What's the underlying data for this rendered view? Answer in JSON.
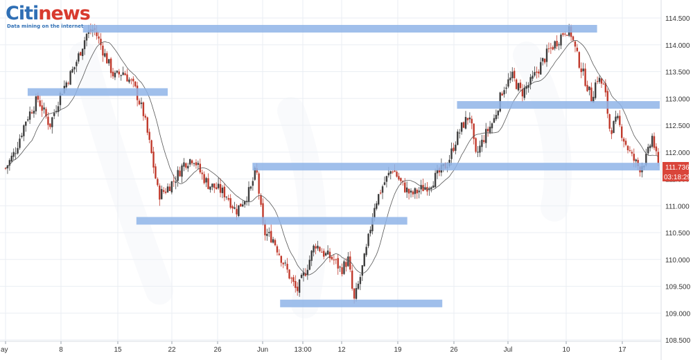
{
  "logo": {
    "brand_part1": "Citi",
    "brand_part2": "news",
    "tagline": "Data mining on the internet"
  },
  "colors": {
    "bull": "#3d3d3d",
    "bear": "#c0392b",
    "zone": "#8fb4e8",
    "ma": "#555555",
    "grid": "#eaeef3",
    "price_tag": "#d9453a"
  },
  "chart_data": {
    "type": "candlestick",
    "title": "",
    "ylim": [
      108.5,
      114.5
    ],
    "ytick_labels": [
      "114.500",
      "114.000",
      "113.500",
      "113.000",
      "112.500",
      "112.000",
      "111.500",
      "111.000",
      "110.500",
      "110.000",
      "109.500",
      "109.000",
      "108.500"
    ],
    "xtick_labels": [
      "ay",
      "8",
      "15",
      "22",
      "26",
      "Jun",
      "13:00",
      "12",
      "19",
      "26",
      "Jul",
      "10",
      "17"
    ],
    "last_price": "111.736",
    "countdown": "03:18:29",
    "close_path": [
      [
        0,
        111.7
      ],
      [
        10,
        112.0
      ],
      [
        22,
        112.6
      ],
      [
        35,
        113.0
      ],
      [
        48,
        112.5
      ],
      [
        60,
        113.1
      ],
      [
        75,
        113.6
      ],
      [
        88,
        114.2
      ],
      [
        96,
        114.3
      ],
      [
        108,
        113.8
      ],
      [
        118,
        113.4
      ],
      [
        128,
        113.5
      ],
      [
        140,
        113.2
      ],
      [
        150,
        112.7
      ],
      [
        158,
        112.0
      ],
      [
        166,
        111.2
      ],
      [
        174,
        111.3
      ],
      [
        184,
        111.5
      ],
      [
        194,
        111.8
      ],
      [
        204,
        111.9
      ],
      [
        212,
        111.6
      ],
      [
        220,
        111.4
      ],
      [
        232,
        111.3
      ],
      [
        240,
        111.2
      ],
      [
        250,
        110.9
      ],
      [
        258,
        111.1
      ],
      [
        266,
        111.3
      ],
      [
        272,
        111.7
      ],
      [
        280,
        110.5
      ],
      [
        290,
        110.4
      ],
      [
        300,
        110.0
      ],
      [
        308,
        109.7
      ],
      [
        316,
        109.4
      ],
      [
        326,
        109.8
      ],
      [
        336,
        110.3
      ],
      [
        346,
        110.1
      ],
      [
        356,
        110.0
      ],
      [
        364,
        109.8
      ],
      [
        372,
        110.0
      ],
      [
        378,
        109.2
      ],
      [
        384,
        109.6
      ],
      [
        392,
        110.2
      ],
      [
        400,
        111.0
      ],
      [
        410,
        111.4
      ],
      [
        420,
        111.7
      ],
      [
        430,
        111.4
      ],
      [
        440,
        111.2
      ],
      [
        450,
        111.3
      ],
      [
        460,
        111.4
      ],
      [
        470,
        111.6
      ],
      [
        480,
        111.8
      ],
      [
        488,
        112.2
      ],
      [
        496,
        112.5
      ],
      [
        504,
        112.7
      ],
      [
        510,
        111.9
      ],
      [
        520,
        112.3
      ],
      [
        530,
        112.6
      ],
      [
        540,
        113.2
      ],
      [
        550,
        113.4
      ],
      [
        560,
        113.1
      ],
      [
        570,
        113.3
      ],
      [
        580,
        113.6
      ],
      [
        590,
        113.9
      ],
      [
        600,
        114.1
      ],
      [
        608,
        114.3
      ],
      [
        614,
        114.2
      ],
      [
        620,
        113.8
      ],
      [
        628,
        113.4
      ],
      [
        636,
        113.0
      ],
      [
        642,
        113.4
      ],
      [
        650,
        113.2
      ],
      [
        656,
        112.4
      ],
      [
        664,
        112.6
      ],
      [
        672,
        112.2
      ],
      [
        680,
        111.9
      ],
      [
        688,
        111.7
      ],
      [
        696,
        111.9
      ],
      [
        702,
        112.3
      ],
      [
        708,
        111.74
      ]
    ],
    "zones": [
      {
        "x0": 84,
        "x1": 642,
        "y": 114.3
      },
      {
        "x0": 24,
        "x1": 176,
        "y": 113.12
      },
      {
        "x0": 490,
        "x1": 710,
        "y": 112.88
      },
      {
        "x0": 268,
        "x1": 710,
        "y": 111.73
      },
      {
        "x0": 142,
        "x1": 436,
        "y": 110.72
      },
      {
        "x0": 298,
        "x1": 474,
        "y": 109.18
      }
    ]
  }
}
